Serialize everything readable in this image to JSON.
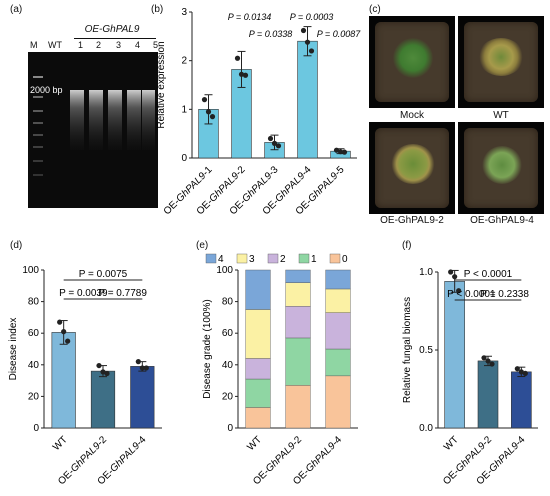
{
  "panels": {
    "a": {
      "label": "(a)",
      "header": "OE-GhPAL9",
      "lanes": [
        "M",
        "WT",
        "1",
        "2",
        "3",
        "4",
        "5"
      ],
      "marker": "2000 bp"
    },
    "b": {
      "label": "(b)",
      "ylabel": "Relative expression",
      "pvals": [
        "P = 0.0134",
        "P = 0.0003",
        "P = 0.0338",
        "P = 0.0087"
      ]
    },
    "c": {
      "label": "(c)",
      "captions": [
        "Mock",
        "WT",
        "OE-GhPAL9-2",
        "OE-GhPAL9-4"
      ]
    },
    "d": {
      "label": "(d)",
      "ylabel": "Disease index",
      "pvals": [
        "P = 0.0075",
        "P = 0.0039",
        "P = 0.7789"
      ]
    },
    "e": {
      "label": "(e)",
      "ylabel": "Disease grade (100%)"
    },
    "f": {
      "label": "(f)",
      "ylabel": "Relative fungal biomass",
      "pvals": [
        "P < 0.0001",
        "P < 0.0001",
        "P = 0.2338"
      ]
    }
  },
  "chart_data": [
    {
      "panel": "b",
      "type": "bar",
      "categories": [
        "OE-GhPAL9-1",
        "OE-GhPAL9-2",
        "OE-GhPAL9-3",
        "OE-GhPAL9-4",
        "OE-GhPAL9-5"
      ],
      "values": [
        1.0,
        1.82,
        0.32,
        2.4,
        0.14
      ],
      "errors": [
        0.3,
        0.37,
        0.15,
        0.3,
        0.05
      ],
      "points": [
        [
          1.2,
          0.95,
          0.85
        ],
        [
          2.05,
          1.72,
          1.7
        ],
        [
          0.4,
          0.3,
          0.25
        ],
        [
          2.62,
          2.38,
          2.2
        ],
        [
          0.16,
          0.13,
          0.12
        ]
      ],
      "ylim": [
        0,
        3
      ],
      "yticks": [
        0,
        1,
        2,
        3
      ],
      "color": "#6cc7e0"
    },
    {
      "panel": "d",
      "type": "bar",
      "categories": [
        "WT",
        "OE-GhPAL9-2",
        "OE-GhPAL9-4"
      ],
      "values": [
        60.5,
        36,
        39
      ],
      "errors": [
        7.5,
        3.5,
        3
      ],
      "points": [
        [
          67,
          61,
          55
        ],
        [
          39.5,
          35.5,
          34.5
        ],
        [
          42,
          38,
          38
        ]
      ],
      "ylim": [
        0,
        100
      ],
      "yticks": [
        0,
        20,
        40,
        60,
        80,
        100
      ],
      "colors": [
        "#7fb8da",
        "#3e6f86",
        "#2d4e96"
      ]
    },
    {
      "panel": "e",
      "type": "bar",
      "stacked": true,
      "categories": [
        "WT",
        "OE-GhPAL9-2",
        "OE-GhPAL9-4"
      ],
      "legend": [
        "4",
        "3",
        "2",
        "1",
        "0"
      ],
      "series": [
        {
          "name": "0",
          "color": "#f9c49a",
          "values": [
            13,
            27,
            33
          ]
        },
        {
          "name": "1",
          "color": "#8fd6a3",
          "values": [
            18,
            30,
            17
          ]
        },
        {
          "name": "2",
          "color": "#c9b3dc",
          "values": [
            13,
            20,
            23
          ]
        },
        {
          "name": "3",
          "color": "#fbf1a4",
          "values": [
            31,
            15,
            15
          ]
        },
        {
          "name": "4",
          "color": "#7aa6d8",
          "values": [
            25,
            8,
            12
          ]
        }
      ],
      "ylim": [
        0,
        100
      ],
      "yticks": [
        0,
        20,
        40,
        60,
        80,
        100
      ]
    },
    {
      "panel": "f",
      "type": "bar",
      "categories": [
        "WT",
        "OE-GhPAL9-2",
        "OE-GhPAL9-4"
      ],
      "values": [
        0.94,
        0.43,
        0.36
      ],
      "errors": [
        0.07,
        0.03,
        0.03
      ],
      "points": [
        [
          1.0,
          0.97,
          0.88
        ],
        [
          0.45,
          0.43,
          0.41
        ],
        [
          0.38,
          0.36,
          0.35
        ]
      ],
      "ylim": [
        0,
        1.0
      ],
      "yticks": [
        0,
        0.5,
        1.0
      ],
      "colors": [
        "#7fb8da",
        "#3e6f86",
        "#2d4e96"
      ]
    }
  ]
}
